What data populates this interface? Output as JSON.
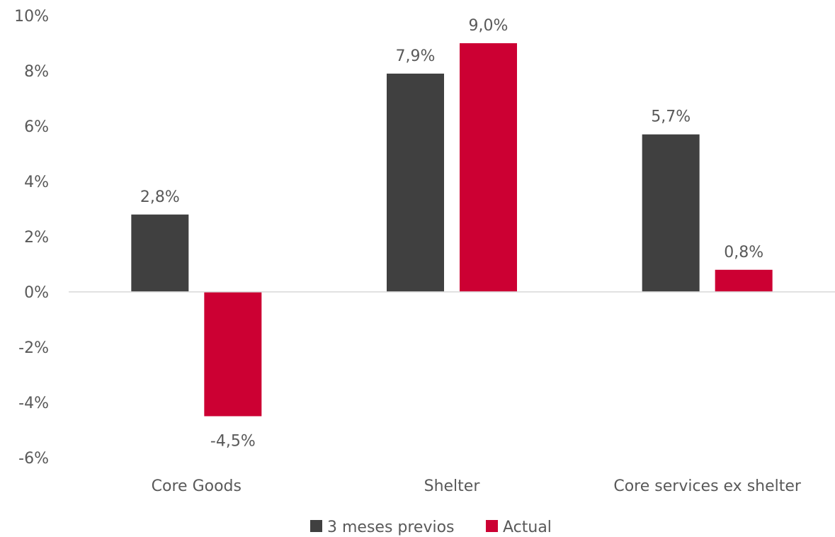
{
  "chart_data": {
    "type": "bar",
    "categories": [
      "Core Goods",
      "Shelter",
      "Core services ex shelter"
    ],
    "series": [
      {
        "name": "3 meses previos",
        "color": "#404040",
        "values": [
          2.8,
          7.9,
          5.7
        ],
        "labels": [
          "2,8%",
          "7,9%",
          "5,7%"
        ]
      },
      {
        "name": "Actual",
        "color": "#CC0033",
        "values": [
          -4.5,
          9.0,
          0.8
        ],
        "labels": [
          "-4,5%",
          "9,0%",
          "0,8%"
        ]
      }
    ],
    "ylim": [
      -6,
      10
    ],
    "yticks": [
      10,
      8,
      6,
      4,
      2,
      0,
      -2,
      -4,
      -6
    ],
    "ytick_labels": [
      "10%",
      "8%",
      "6%",
      "4%",
      "2%",
      "0%",
      "-2%",
      "-4%",
      "-6%"
    ],
    "grid": false,
    "legend_position": "bottom",
    "axis_color": "#D9D9D9",
    "text_color": "#595959"
  }
}
